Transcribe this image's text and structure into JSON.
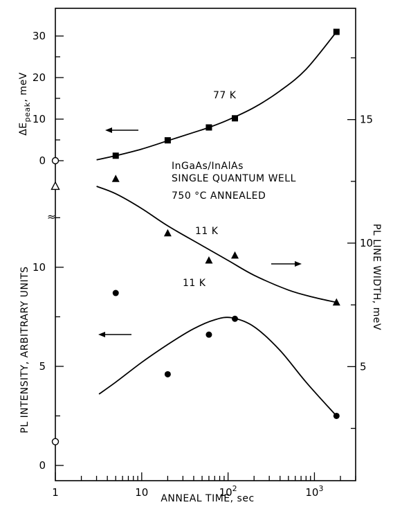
{
  "chart_data": {
    "type": "scatter",
    "xlabel": "ANNEAL TIME, sec",
    "x_scale": "log",
    "xlim": [
      1,
      3000
    ],
    "x_ticks": [
      1,
      10,
      100,
      1000
    ],
    "x_tick_labels": [
      {
        "base": "1",
        "exp": ""
      },
      {
        "base": "10",
        "exp": ""
      },
      {
        "base": "10",
        "exp": "2"
      },
      {
        "base": "10",
        "exp": "3"
      }
    ],
    "ylabel_left_top": {
      "main": "ΔE",
      "sub": "peak",
      "unit": ", meV"
    },
    "ylabel_left_bottom": "PL INTENSITY, ARBITRARY UNITS",
    "ylabel_right": "PL LINE WIDTH, meV",
    "ylim_top": [
      0,
      35
    ],
    "ylim_bottom": [
      0,
      13
    ],
    "ylim_right": [
      1,
      19
    ],
    "ticks_top": [
      "0",
      "10",
      "20",
      "30"
    ],
    "ticks_bottom": [
      "0",
      "5",
      "10"
    ],
    "ticks_right": [
      "5",
      "10",
      "15"
    ],
    "axis_break": "≈",
    "annotations": {
      "line1": "InGaAs/InAlAs",
      "line2": "SINGLE QUANTUM WELL",
      "line3": "750 °C ANNEALED"
    },
    "series": [
      {
        "label": "77 K",
        "marker": "square",
        "axis": "left-top",
        "points": [
          [
            5,
            1.2
          ],
          [
            20,
            4.9
          ],
          [
            60,
            8.0
          ],
          [
            120,
            10.2
          ],
          [
            1800,
            31.0
          ]
        ],
        "curve": [
          [
            3,
            0.2
          ],
          [
            5,
            1.2
          ],
          [
            10,
            2.8
          ],
          [
            20,
            4.8
          ],
          [
            40,
            6.8
          ],
          [
            60,
            8.0
          ],
          [
            100,
            9.8
          ],
          [
            200,
            12.8
          ],
          [
            400,
            16.8
          ],
          [
            800,
            22.0
          ],
          [
            1800,
            31.0
          ]
        ],
        "arrow": "left"
      },
      {
        "label": "11 K",
        "marker": "triangle",
        "axis": "right",
        "points": [
          [
            5,
            12.6
          ],
          [
            20,
            10.4
          ],
          [
            60,
            9.3
          ],
          [
            120,
            9.5
          ],
          [
            1800,
            7.6
          ]
        ],
        "curve": [
          [
            3,
            12.3
          ],
          [
            5,
            12.0
          ],
          [
            10,
            11.4
          ],
          [
            20,
            10.7
          ],
          [
            50,
            9.9
          ],
          [
            100,
            9.3
          ],
          [
            200,
            8.7
          ],
          [
            500,
            8.1
          ],
          [
            1000,
            7.8
          ],
          [
            1800,
            7.6
          ]
        ],
        "arrow": "right"
      },
      {
        "label": "11 K",
        "marker": "circle",
        "axis": "left-bottom",
        "points": [
          [
            5,
            8.7
          ],
          [
            20,
            4.6
          ],
          [
            60,
            6.6
          ],
          [
            120,
            7.4
          ],
          [
            1800,
            2.5
          ]
        ],
        "curve": [
          [
            3.2,
            3.6
          ],
          [
            5,
            4.2
          ],
          [
            10,
            5.2
          ],
          [
            20,
            6.1
          ],
          [
            40,
            6.9
          ],
          [
            70,
            7.35
          ],
          [
            110,
            7.45
          ],
          [
            200,
            7.0
          ],
          [
            400,
            5.8
          ],
          [
            800,
            4.2
          ],
          [
            1800,
            2.5
          ]
        ],
        "arrow": "left"
      }
    ],
    "reference_markers": [
      {
        "marker": "open-circle",
        "x": 1,
        "axis": "left-top",
        "y": 0
      },
      {
        "marker": "open-triangle",
        "x": 1,
        "axis": "right",
        "y": 12.3
      },
      {
        "marker": "open-circle",
        "x": 1,
        "axis": "left-bottom",
        "y": 1.2
      }
    ]
  }
}
